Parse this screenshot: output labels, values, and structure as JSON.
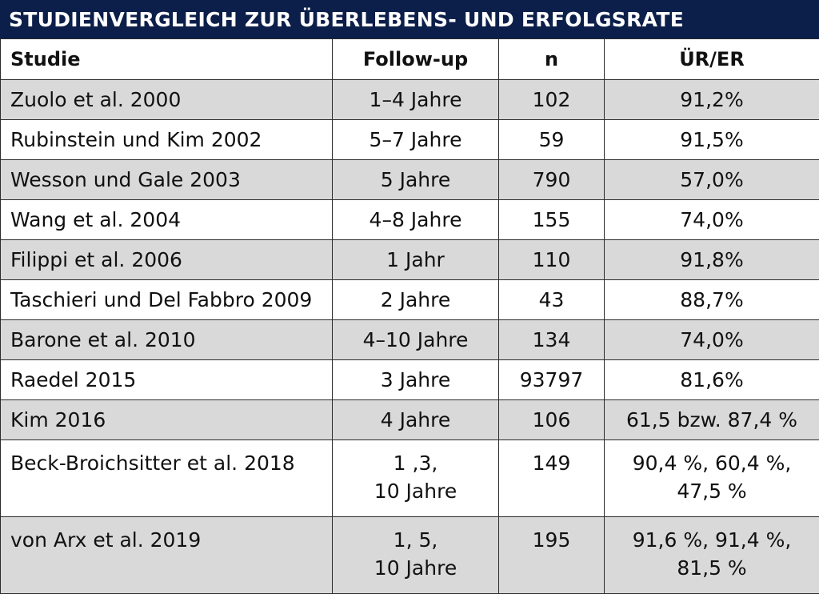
{
  "title": "STUDIENVERGLEICH ZUR ÜBERLEBENS- UND ERFOLGSRATE",
  "headers": [
    "Studie",
    "Follow-up",
    "n",
    "ÜR/ER"
  ],
  "rows": [
    {
      "studie": "Zuolo et al. 2000",
      "followup": [
        "1–4 Jahre"
      ],
      "n": "102",
      "rate": [
        "91,2%"
      ]
    },
    {
      "studie": "Rubinstein und Kim 2002",
      "followup": [
        "5–7 Jahre"
      ],
      "n": "59",
      "rate": [
        "91,5%"
      ]
    },
    {
      "studie": "Wesson und Gale 2003",
      "followup": [
        "5 Jahre"
      ],
      "n": "790",
      "rate": [
        "57,0%"
      ]
    },
    {
      "studie": "Wang et al. 2004",
      "followup": [
        "4–8 Jahre"
      ],
      "n": "155",
      "rate": [
        "74,0%"
      ]
    },
    {
      "studie": "Filippi et al. 2006",
      "followup": [
        "1 Jahr"
      ],
      "n": "110",
      "rate": [
        "91,8%"
      ]
    },
    {
      "studie": "Taschieri und Del Fabbro 2009",
      "followup": [
        "2 Jahre"
      ],
      "n": "43",
      "rate": [
        "88,7%"
      ]
    },
    {
      "studie": "Barone et al. 2010",
      "followup": [
        "4–10 Jahre"
      ],
      "n": "134",
      "rate": [
        "74,0%"
      ]
    },
    {
      "studie": "Raedel 2015",
      "followup": [
        "3 Jahre"
      ],
      "n": "93797",
      "rate": [
        "81,6%"
      ]
    },
    {
      "studie": "Kim 2016",
      "followup": [
        "4 Jahre"
      ],
      "n": "106",
      "rate": [
        "61,5 bzw. 87,4 %"
      ]
    },
    {
      "studie": "Beck-Broichsitter et al. 2018",
      "followup": [
        "1 ,3,",
        "10 Jahre"
      ],
      "n": "149",
      "rate": [
        "90,4 %, 60,4 %,",
        "47,5 %"
      ]
    },
    {
      "studie": "von Arx et al. 2019",
      "followup": [
        "1, 5,",
        "10 Jahre"
      ],
      "n": "195",
      "rate": [
        "91,6 %, 91,4 %,",
        "81,5 %"
      ]
    }
  ],
  "colors": {
    "title_bg": "#0c1f4a",
    "row_grey": "#d9d9d9",
    "row_white": "#ffffff",
    "border": "#2b2b2b"
  }
}
